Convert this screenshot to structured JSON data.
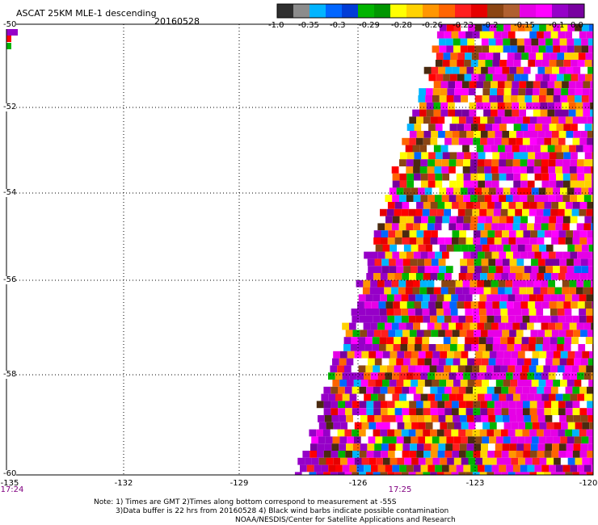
{
  "header": {
    "title": "ASCAT 25KM MLE-1 descending",
    "date": "20160528"
  },
  "colorbar": {
    "colors": [
      "#2f2f2f",
      "#8c8c8c",
      "#00b4ff",
      "#0066ff",
      "#003cd6",
      "#00b400",
      "#009600",
      "#ffff00",
      "#ffd200",
      "#ff9600",
      "#ff6400",
      "#ff1e1e",
      "#e60000",
      "#8b4513",
      "#b06030",
      "#e600e6",
      "#ff00ff",
      "#9600c8",
      "#7800a0"
    ],
    "tick_labels": [
      "-1.0",
      "-0.35",
      "-0.3",
      "-0.29",
      "-0.28",
      "-0.26",
      "-0.23",
      "-0.2",
      "-0.15",
      "-0.1",
      "0.0"
    ]
  },
  "map": {
    "y_tick_labels": [
      "-50",
      "-52",
      "-54",
      "-56",
      "-58",
      "-60"
    ],
    "x_tick_labels": [
      "-135",
      "-132",
      "-129",
      "-126",
      "-123",
      "-120"
    ],
    "time_labels": [
      "17:24",
      "17:25"
    ],
    "palette": [
      "#ff0000",
      "#ff1e1e",
      "#e60000",
      "#ffff00",
      "#ffd200",
      "#ff9600",
      "#ff6400",
      "#ff00ff",
      "#e600e6",
      "#9600c8",
      "#7800a0",
      "#8b4513",
      "#4a2a10",
      "#00b4ff",
      "#0066ff",
      "#00b400",
      "#ffffff"
    ]
  },
  "notes": {
    "line1": "Note: 1) Times are GMT 2)Times along bottom correspond to measurement at -55S",
    "line2": "3)Data buffer is 22 hrs from 20160528 4) Black wind barbs indicate possible contamination",
    "line3": "NOAA/NESDIS/Center for Satellite Applications and Research"
  }
}
